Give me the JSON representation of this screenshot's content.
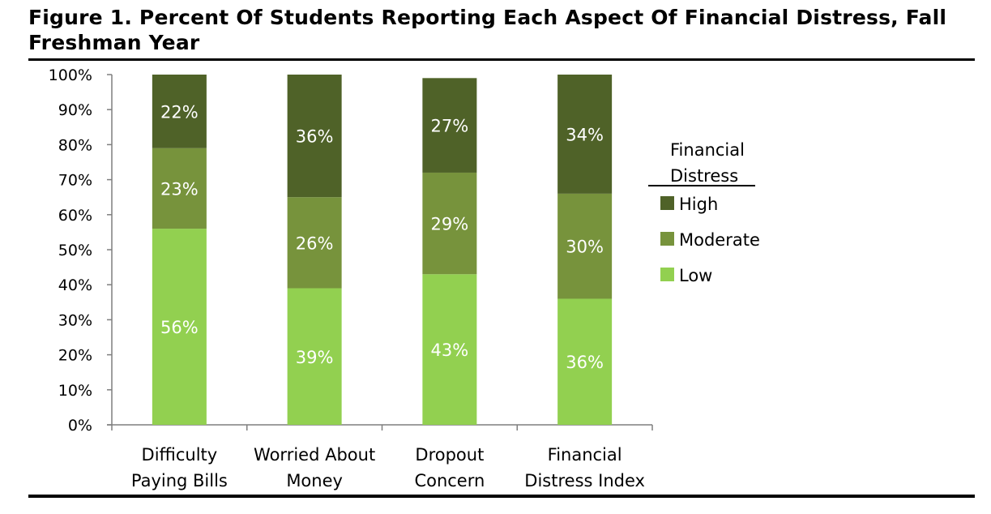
{
  "header": {
    "title": "Figure 1. Percent Of Students Reporting Each Aspect Of Financial Distress, Fall Freshman Year"
  },
  "chart_data": {
    "type": "bar",
    "stacked": true,
    "title": "Figure 1. Percent Of Students Reporting Each Aspect Of Financial Distress, Fall Freshman Year",
    "categories": [
      [
        "Difficulty",
        "Paying Bills"
      ],
      [
        "Worried About",
        "Money"
      ],
      [
        "Dropout",
        "Concern"
      ],
      [
        "Financial",
        "Distress Index"
      ]
    ],
    "series": [
      {
        "name": "Low",
        "values": [
          56,
          39,
          43,
          36
        ],
        "labels": [
          "56%",
          "39%",
          "43%",
          "36%"
        ],
        "color": "#92D050"
      },
      {
        "name": "Moderate",
        "values": [
          23,
          26,
          29,
          30
        ],
        "labels": [
          "23%",
          "26%",
          "29%",
          "30%"
        ],
        "color": "#77933C"
      },
      {
        "name": "High",
        "values": [
          22,
          36,
          27,
          34
        ],
        "labels": [
          "22%",
          "36%",
          "27%",
          "34%"
        ],
        "color": "#4F6228"
      }
    ],
    "ylim": [
      0,
      100
    ],
    "yticks": [
      "0%",
      "10%",
      "20%",
      "30%",
      "40%",
      "50%",
      "60%",
      "70%",
      "80%",
      "90%",
      "100%"
    ],
    "grid": false,
    "legend": {
      "title_lines": [
        "Financial",
        "Distress"
      ],
      "order": [
        "High",
        "Moderate",
        "Low"
      ],
      "position": "right"
    }
  }
}
